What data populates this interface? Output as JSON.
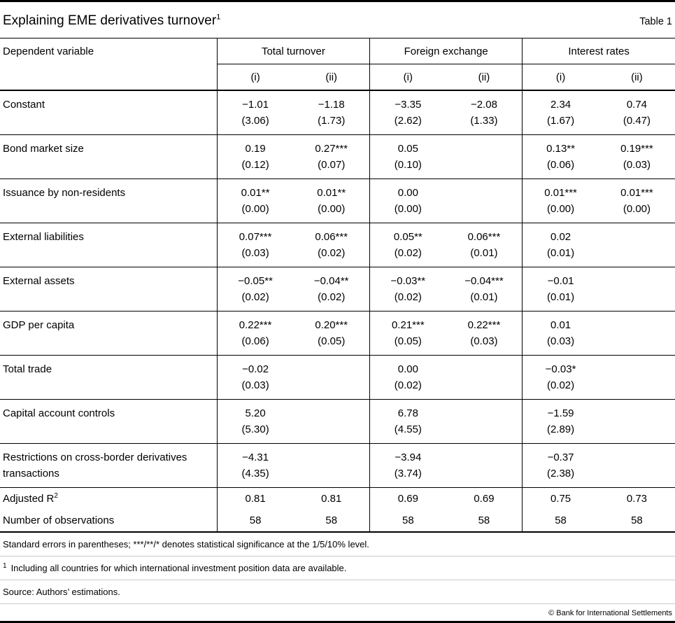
{
  "header": {
    "title": "Explaining EME derivatives turnover",
    "title_footnote_ref": "1",
    "table_label": "Table 1"
  },
  "table": {
    "stub_header": "Dependent variable",
    "groups": [
      {
        "label": "Total turnover"
      },
      {
        "label": "Foreign exchange"
      },
      {
        "label": "Interest rates"
      }
    ],
    "spec_headers": [
      "(i)",
      "(ii)",
      "(i)",
      "(ii)",
      "(i)",
      "(ii)"
    ],
    "rows": [
      {
        "label": "Constant",
        "cells": [
          {
            "c": "−1.01",
            "s": "(3.06)"
          },
          {
            "c": "−1.18",
            "s": "(1.73)"
          },
          {
            "c": "−3.35",
            "s": "(2.62)"
          },
          {
            "c": "−2.08",
            "s": "(1.33)"
          },
          {
            "c": "2.34",
            "s": "(1.67)"
          },
          {
            "c": "0.74",
            "s": "(0.47)"
          }
        ]
      },
      {
        "label": "Bond market size",
        "cells": [
          {
            "c": "0.19",
            "s": "(0.12)"
          },
          {
            "c": "0.27***",
            "s": "(0.07)"
          },
          {
            "c": "0.05",
            "s": "(0.10)"
          },
          {
            "c": "",
            "s": ""
          },
          {
            "c": "0.13**",
            "s": "(0.06)"
          },
          {
            "c": "0.19***",
            "s": "(0.03)"
          }
        ]
      },
      {
        "label": "Issuance by non-residents",
        "cells": [
          {
            "c": "0.01**",
            "s": "(0.00)"
          },
          {
            "c": "0.01**",
            "s": "(0.00)"
          },
          {
            "c": "0.00",
            "s": "(0.00)"
          },
          {
            "c": "",
            "s": ""
          },
          {
            "c": "0.01***",
            "s": "(0.00)"
          },
          {
            "c": "0.01***",
            "s": "(0.00)"
          }
        ]
      },
      {
        "label": "External liabilities",
        "cells": [
          {
            "c": "0.07***",
            "s": "(0.03)"
          },
          {
            "c": "0.06***",
            "s": "(0.02)"
          },
          {
            "c": "0.05**",
            "s": "(0.02)"
          },
          {
            "c": "0.06***",
            "s": "(0.01)"
          },
          {
            "c": "0.02",
            "s": "(0.01)"
          },
          {
            "c": "",
            "s": ""
          }
        ]
      },
      {
        "label": "External assets",
        "cells": [
          {
            "c": "−0.05**",
            "s": "(0.02)"
          },
          {
            "c": "−0.04**",
            "s": "(0.02)"
          },
          {
            "c": "−0.03**",
            "s": "(0.02)"
          },
          {
            "c": "−0.04***",
            "s": "(0.01)"
          },
          {
            "c": "−0.01",
            "s": "(0.01)"
          },
          {
            "c": "",
            "s": ""
          }
        ]
      },
      {
        "label": "GDP per capita",
        "cells": [
          {
            "c": "0.22***",
            "s": "(0.06)"
          },
          {
            "c": "0.20***",
            "s": "(0.05)"
          },
          {
            "c": "0.21***",
            "s": "(0.05)"
          },
          {
            "c": "0.22***",
            "s": "(0.03)"
          },
          {
            "c": "0.01",
            "s": "(0.03)"
          },
          {
            "c": "",
            "s": ""
          }
        ]
      },
      {
        "label": "Total trade",
        "cells": [
          {
            "c": "−0.02",
            "s": "(0.03)"
          },
          {
            "c": "",
            "s": ""
          },
          {
            "c": "0.00",
            "s": "(0.02)"
          },
          {
            "c": "",
            "s": ""
          },
          {
            "c": "−0.03*",
            "s": "(0.02)"
          },
          {
            "c": "",
            "s": ""
          }
        ]
      },
      {
        "label": "Capital account controls",
        "cells": [
          {
            "c": "5.20",
            "s": "(5.30)"
          },
          {
            "c": "",
            "s": ""
          },
          {
            "c": "6.78",
            "s": "(4.55)"
          },
          {
            "c": "",
            "s": ""
          },
          {
            "c": "−1.59",
            "s": "(2.89)"
          },
          {
            "c": "",
            "s": ""
          }
        ]
      },
      {
        "label": "Restrictions on cross-border derivatives transactions",
        "cells": [
          {
            "c": "−4.31",
            "s": "(4.35)"
          },
          {
            "c": "",
            "s": ""
          },
          {
            "c": "−3.94",
            "s": "(3.74)"
          },
          {
            "c": "",
            "s": ""
          },
          {
            "c": "−0.37",
            "s": "(2.38)"
          },
          {
            "c": "",
            "s": ""
          }
        ]
      }
    ],
    "stats": [
      {
        "label": "Adjusted R",
        "label_sup": "2",
        "values": [
          "0.81",
          "0.81",
          "0.69",
          "0.69",
          "0.75",
          "0.73"
        ]
      },
      {
        "label": "Number of observations",
        "label_sup": "",
        "values": [
          "58",
          "58",
          "58",
          "58",
          "58",
          "58"
        ]
      }
    ]
  },
  "footnotes": {
    "significance": "Standard errors in parentheses; ***/**/* denotes statistical significance at the 1/5/10% level.",
    "fn1_marker": "1",
    "fn1_text": "Including all countries for which international investment position data are available.",
    "source": "Source: Authors’ estimations.",
    "copyright": "© Bank for International Settlements"
  }
}
